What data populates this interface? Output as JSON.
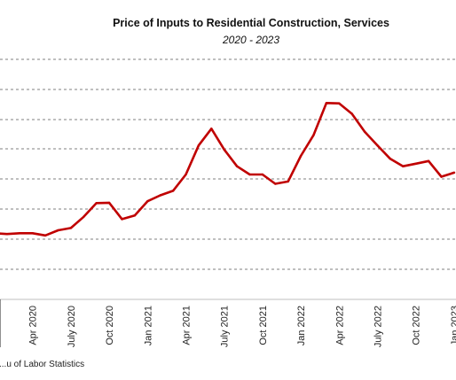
{
  "chart_data": {
    "type": "line",
    "title": "Price of Inputs to Residential Construction, Services",
    "subtitle": "2020 - 2023",
    "source": "...u of Labor Statistics",
    "grid": true,
    "x_tick_labels": [
      "Apr 2020",
      "July 2020",
      "Oct 2020",
      "Jan 2021",
      "Apr 2021",
      "July 2021",
      "Oct 2021",
      "Jan 2022",
      "Apr 2022",
      "July 2022",
      "Oct 2022",
      "Jan 2023"
    ],
    "x": [
      "Jan 2020",
      "Feb 2020",
      "Mar 2020",
      "Apr 2020",
      "May 2020",
      "Jun 2020",
      "Jul 2020",
      "Aug 2020",
      "Sep 2020",
      "Oct 2020",
      "Nov 2020",
      "Dec 2020",
      "Jan 2021",
      "Feb 2021",
      "Mar 2021",
      "Apr 2021",
      "May 2021",
      "Jun 2021",
      "Jul 2021",
      "Aug 2021",
      "Sep 2021",
      "Oct 2021",
      "Nov 2021",
      "Dec 2021",
      "Jan 2022",
      "Feb 2022",
      "Mar 2022",
      "Apr 2022",
      "May 2022",
      "Jun 2022",
      "Jul 2022",
      "Aug 2022",
      "Sep 2022",
      "Oct 2022",
      "Nov 2022",
      "Dec 2022",
      "Jan 2023"
    ],
    "series": [
      {
        "color": "#c00000",
        "values": [
          -14.6,
          -14.8,
          -14.6,
          -14.6,
          -15.2,
          -13.8,
          -13.2,
          -10.2,
          -6.5,
          -6.4,
          -10.8,
          -9.8,
          -6.0,
          -4.4,
          -3.2,
          1.2,
          9.0,
          13.5,
          7.9,
          3.4,
          1.2,
          1.2,
          -1.3,
          -0.7,
          6.2,
          11.8,
          20.4,
          20.3,
          17.5,
          12.7,
          9.0,
          5.4,
          3.4,
          4.1,
          4.8,
          0.6,
          1.7
        ]
      }
    ],
    "xlim": [
      "Jan 2020",
      "Jan 2023"
    ]
  }
}
